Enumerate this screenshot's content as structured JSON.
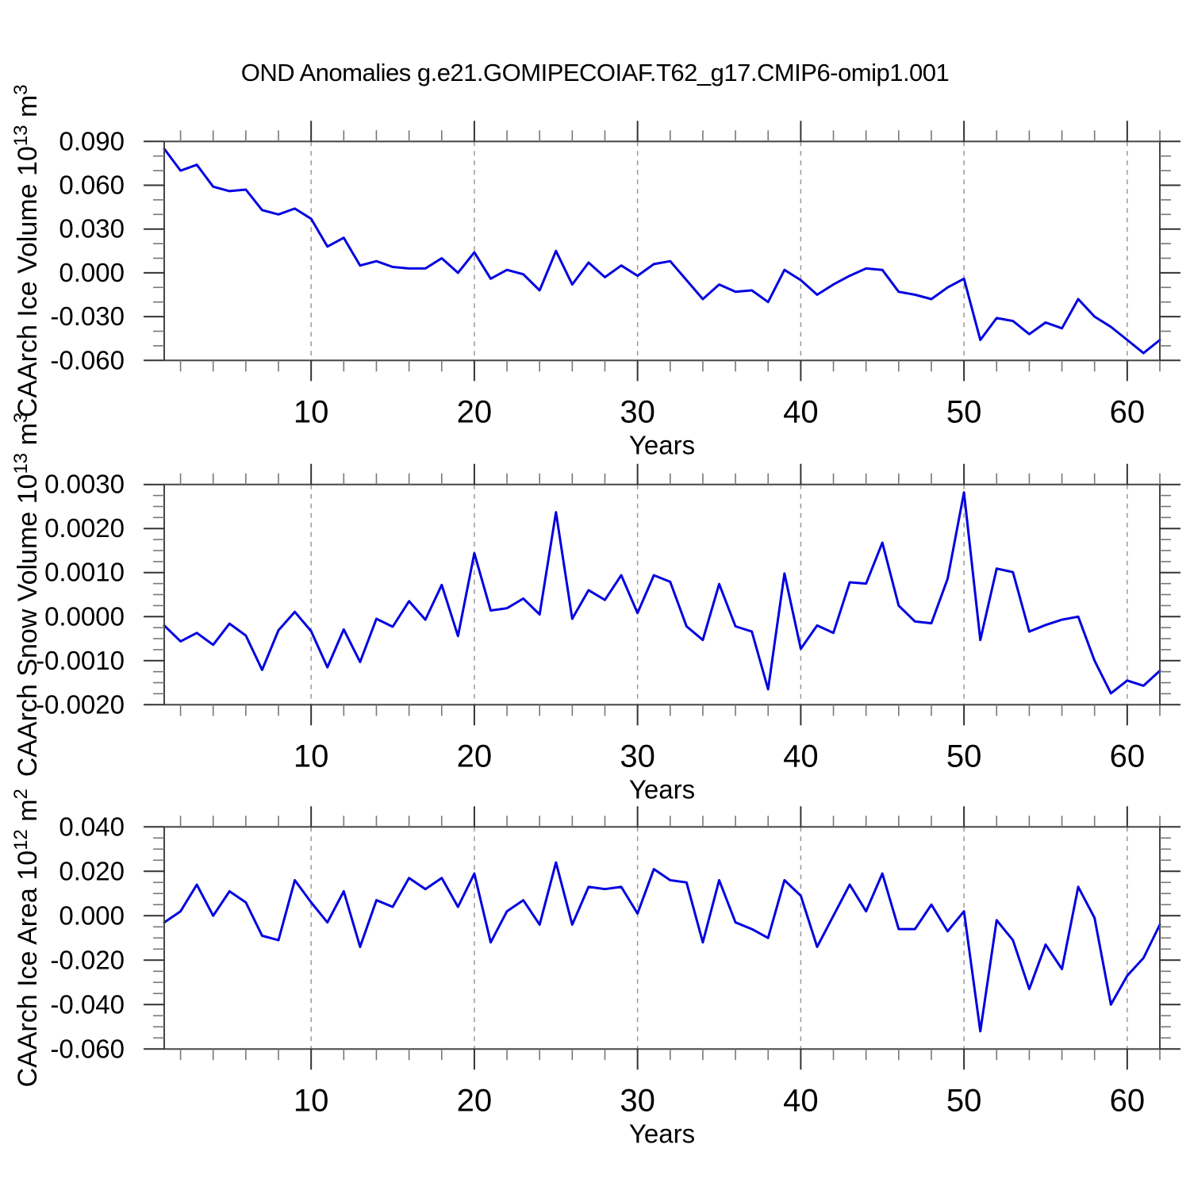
{
  "title": "OND Anomalies g.e21.GOMIPECOIAF.T62_g17.CMIP6-omip1.001",
  "accent_color": "#0000e0",
  "years": [
    1,
    2,
    3,
    4,
    5,
    6,
    7,
    8,
    9,
    10,
    11,
    12,
    13,
    14,
    15,
    16,
    17,
    18,
    19,
    20,
    21,
    22,
    23,
    24,
    25,
    26,
    27,
    28,
    29,
    30,
    31,
    32,
    33,
    34,
    35,
    36,
    37,
    38,
    39,
    40,
    41,
    42,
    43,
    44,
    45,
    46,
    47,
    48,
    49,
    50,
    51,
    52,
    53,
    54,
    55,
    56,
    57,
    58,
    59,
    60,
    61,
    62
  ],
  "chart_data": [
    {
      "type": "line",
      "ylabel": "CAArch Ice Volume 10^13 m^3",
      "ylabel_segments": [
        {
          "t": "CAArch Ice Volume 10"
        },
        {
          "t": "13",
          "sup": true
        },
        {
          "t": " m"
        },
        {
          "t": "3",
          "sup": true
        }
      ],
      "xlabel": "Years",
      "xlim": [
        1,
        62
      ],
      "ylim": [
        -0.06,
        0.09
      ],
      "yticks": [
        0.09,
        0.06,
        0.03,
        0.0,
        -0.03,
        -0.06
      ],
      "ytick_labels": [
        "0.090",
        "0.060",
        "0.030",
        "0.000",
        "-0.030",
        "-0.060"
      ],
      "y_minor_step": 0.01,
      "xticks": [
        10,
        20,
        30,
        40,
        50,
        60
      ],
      "xtick_labels": [
        "10",
        "20",
        "30",
        "40",
        "50",
        "60"
      ],
      "x_minor_step": 2,
      "grid": "vertical-dashed",
      "legend": "none",
      "line_color": "#0000e0",
      "values": [
        0.085,
        0.07,
        0.074,
        0.059,
        0.056,
        0.057,
        0.043,
        0.04,
        0.044,
        0.037,
        0.018,
        0.024,
        0.005,
        0.008,
        0.004,
        0.003,
        0.003,
        0.01,
        0.0,
        0.014,
        -0.004,
        0.002,
        -0.001,
        -0.012,
        0.015,
        -0.008,
        0.007,
        -0.003,
        0.005,
        -0.002,
        0.006,
        0.008,
        -0.005,
        -0.018,
        -0.008,
        -0.013,
        -0.012,
        -0.02,
        0.002,
        -0.005,
        -0.015,
        -0.008,
        -0.002,
        0.003,
        0.002,
        -0.013,
        -0.015,
        -0.018,
        -0.01,
        -0.004,
        -0.046,
        -0.031,
        -0.033,
        -0.042,
        -0.034,
        -0.038,
        -0.018,
        -0.03,
        -0.037,
        -0.046,
        -0.055,
        -0.046
      ]
    },
    {
      "type": "line",
      "ylabel": "CAArch Snow Volume 10^13 m^3",
      "ylabel_segments": [
        {
          "t": "CAArch Snow Volume 10"
        },
        {
          "t": "13",
          "sup": true
        },
        {
          "t": " m"
        },
        {
          "t": "3",
          "sup": true
        }
      ],
      "xlabel": "Years",
      "xlim": [
        1,
        62
      ],
      "ylim": [
        -0.002,
        0.003
      ],
      "yticks": [
        0.003,
        0.002,
        0.001,
        0.0,
        -0.001,
        -0.002
      ],
      "ytick_labels": [
        "0.0030",
        "0.0020",
        "0.0010",
        "0.0000",
        "-0.0010",
        "-0.0020"
      ],
      "y_minor_step": 0.00025,
      "xticks": [
        10,
        20,
        30,
        40,
        50,
        60
      ],
      "xtick_labels": [
        "10",
        "20",
        "30",
        "40",
        "50",
        "60"
      ],
      "x_minor_step": 2,
      "grid": "vertical-dashed",
      "legend": "none",
      "line_color": "#0000e0",
      "values": [
        -0.0002,
        -0.00056,
        -0.00037,
        -0.00064,
        -0.00016,
        -0.00043,
        -0.00121,
        -0.00031,
        0.00011,
        -0.00033,
        -0.00115,
        -0.00029,
        -0.00103,
        -5e-05,
        -0.00023,
        0.00035,
        -7e-05,
        0.00072,
        -0.00044,
        0.00144,
        0.00014,
        0.00019,
        0.00041,
        5e-05,
        0.00237,
        -5e-05,
        0.0006,
        0.00038,
        0.00094,
        8e-05,
        0.00094,
        0.00079,
        -0.00022,
        -0.00053,
        0.00074,
        -0.00022,
        -0.00034,
        -0.00165,
        0.00098,
        -0.00073,
        -0.0002,
        -0.00037,
        0.00078,
        0.00075,
        0.00168,
        0.00025,
        -0.00011,
        -0.00015,
        0.00086,
        0.00282,
        -0.00053,
        0.00109,
        0.00101,
        -0.00034,
        -0.00019,
        -7e-05,
        0.0,
        -0.001,
        -0.00174,
        -0.00145,
        -0.00157,
        -0.00123
      ]
    },
    {
      "type": "line",
      "ylabel": "CAArch Ice Area 10^12 m^2",
      "ylabel_segments": [
        {
          "t": "CAArch Ice Area 10"
        },
        {
          "t": "12",
          "sup": true
        },
        {
          "t": " m"
        },
        {
          "t": "2",
          "sup": true
        }
      ],
      "xlabel": "Years",
      "xlim": [
        1,
        62
      ],
      "ylim": [
        -0.06,
        0.04
      ],
      "yticks": [
        0.04,
        0.02,
        0.0,
        -0.02,
        -0.04,
        -0.06
      ],
      "ytick_labels": [
        "0.040",
        "0.020",
        "0.000",
        "-0.020",
        "-0.040",
        "-0.060"
      ],
      "y_minor_step": 0.005,
      "xticks": [
        10,
        20,
        30,
        40,
        50,
        60
      ],
      "xtick_labels": [
        "10",
        "20",
        "30",
        "40",
        "50",
        "60"
      ],
      "x_minor_step": 2,
      "grid": "vertical-dashed",
      "legend": "none",
      "line_color": "#0000e0",
      "values": [
        -0.003,
        0.002,
        0.014,
        0.0,
        0.011,
        0.006,
        -0.009,
        -0.011,
        0.016,
        0.006,
        -0.003,
        0.011,
        -0.014,
        0.007,
        0.004,
        0.017,
        0.012,
        0.017,
        0.004,
        0.019,
        -0.012,
        0.002,
        0.007,
        -0.004,
        0.024,
        -0.004,
        0.013,
        0.012,
        0.013,
        0.001,
        0.021,
        0.016,
        0.015,
        -0.012,
        0.016,
        -0.003,
        -0.006,
        -0.01,
        0.016,
        0.009,
        -0.014,
        0.0,
        0.014,
        0.002,
        0.019,
        -0.006,
        -0.006,
        0.005,
        -0.007,
        0.002,
        -0.052,
        -0.002,
        -0.011,
        -0.033,
        -0.013,
        -0.024,
        0.013,
        -0.001,
        -0.04,
        -0.027,
        -0.019,
        -0.004
      ]
    }
  ]
}
